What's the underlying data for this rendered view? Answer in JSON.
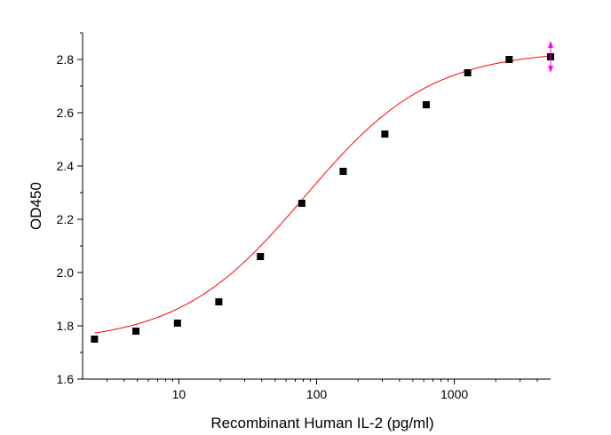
{
  "chart_data": {
    "type": "scatter",
    "title": "",
    "xlabel": "Recombinant Human IL-2 (pg/ml)",
    "ylabel": "OD450",
    "xscale": "log",
    "xlim": [
      2.0,
      5000
    ],
    "ylim": [
      1.6,
      2.9
    ],
    "x_ticks": [
      10,
      100,
      1000
    ],
    "x_tick_labels": [
      "10",
      "100",
      "1000"
    ],
    "y_ticks": [
      1.6,
      1.8,
      2.0,
      2.2,
      2.4,
      2.6,
      2.8
    ],
    "y_tick_labels": [
      "1.6",
      "1.8",
      "2.0",
      "2.2",
      "2.4",
      "2.6",
      "2.8"
    ],
    "grid": false,
    "legend": "none",
    "series": [
      {
        "marker": "square",
        "color": "#000000",
        "x": [
          2.44,
          4.88,
          9.77,
          19.5,
          39.1,
          78.1,
          156,
          313,
          625,
          1250,
          2500,
          5000
        ],
        "y": [
          1.75,
          1.78,
          1.81,
          1.89,
          2.06,
          2.26,
          2.38,
          2.52,
          2.63,
          2.75,
          2.8,
          2.81
        ]
      }
    ],
    "fit_curve": {
      "color": "#ff0000",
      "model": "4PL",
      "bottom": 1.735,
      "top": 2.835,
      "ec50": 82,
      "hill": 0.95
    },
    "end_marker_color": "#ff00ff"
  }
}
